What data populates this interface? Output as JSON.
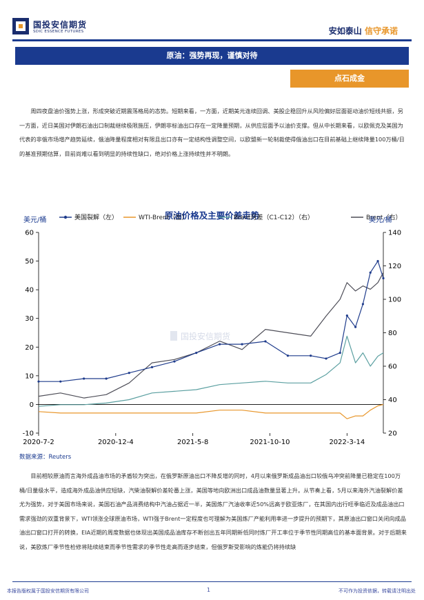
{
  "header": {
    "logo_cn": "国投安信期货",
    "logo_en": "SDIC ESSENCE FUTURES",
    "slogan_a": "安如泰山",
    "slogan_b": "信守承诺"
  },
  "report": {
    "title": "原油：强势再现，谨慎对待",
    "section_tag": "点石成金",
    "paragraph1": "周四夜盘油价强势上涨，形成突破近期震荡格局的态势。短期来看，一方面，近期美元连续回调、美股企稳回升从风险偏好层面驱动油价短线共振，另一方面，近日美国对伊朗石油出口制裁继续极限施压，伊朗非标油出口存在一定降量预期，从供应层面予以油价支撑。但从中长期来看，以欧佩克及美国为代表的非俄市场增产趋势延续，俄油降量程度相对有限且出口亦有一定结构性调整空间，以欧盟新一轮制裁使得俄油出口在目前基础上继续降量100万桶/日的基准预期估算，目前尚难以看到明显的持续性缺口，绝对价格上涨持续性并不明朗。",
    "paragraph2": "目前相较原油而言海外成品油市场的矛盾较为突出，在俄罗斯原油出口不降反增的同时，4月以来俄罗斯成品油出口较俄乌冲突前降量已稳定在100万桶/日量级水平，造成海外成品油供应短缺，汽柴油裂解价差轮番上涨，美国等地向欧洲出口成品油数量显著上升。从节奏上看，5月以来海外汽油裂解价差尤为强势，对于美国市场来说，美国石油产品消费结构中汽油占据近一半，美国炼厂汽油收率近50%远高于欧亚炼厂，在其国内出行旺季临近及成品油出口需求强劲的双重背景下，WTI领涨全球原油市场，WTI强于Brent一定程度也可理解为美国炼厂产能利用率进一步提升的预期下，其原油出口窗口关闭向成品油出口窗口打开的转换，EIA近期的周度数据也体现出美国成品油库存不断创出五年同期新低同时炼厂开工率位于季节性同期高位的基本面背景。对于后期来说，美欧炼厂季节性检修将陆续结束而季节性需求的季节性走高而逐步结束，但俄罗斯受影响的炼能仍将持续缺"
  },
  "chart_data": {
    "type": "line",
    "title": "原油价格及主要价差走势",
    "left_unit": "美元/桶",
    "right_unit": "美元/桶",
    "source": "数据来源：Reuters",
    "y_left": [
      -10,
      60
    ],
    "y_right": [
      20,
      140
    ],
    "y_left_ticks": [
      -10,
      0,
      10,
      20,
      30,
      40,
      50,
      60
    ],
    "y_right_ticks": [
      20,
      40,
      60,
      80,
      100,
      120,
      140
    ],
    "x_tick_labels": [
      "2020-7-2",
      "2020-12-4",
      "2021-5-8",
      "2021-10-10",
      "2022-3-14"
    ],
    "x_range": [
      "2020-7-2",
      "2022-5-26"
    ],
    "grid": false,
    "legend_position": "top",
    "watermark": "国投安信期货",
    "series": [
      {
        "name": "美国裂解（左）",
        "axis": "left",
        "color": "#1f3c8c",
        "marker": true,
        "x": [
          "2020-7-2",
          "2020-8-15",
          "2020-10-1",
          "2020-11-15",
          "2020-12-31",
          "2021-2-15",
          "2021-4-1",
          "2021-5-15",
          "2021-7-1",
          "2021-8-15",
          "2021-10-1",
          "2021-11-15",
          "2021-12-31",
          "2022-1-31",
          "2022-2-28",
          "2022-3-14",
          "2022-3-31",
          "2022-4-15",
          "2022-4-30",
          "2022-5-15",
          "2022-5-26"
        ],
        "values": [
          8,
          8,
          9,
          9,
          11,
          13,
          15,
          18,
          21,
          21,
          22,
          17,
          17,
          16,
          18,
          31,
          27,
          35,
          46,
          50,
          44
        ]
      },
      {
        "name": "WTI-Brent（左）",
        "axis": "left",
        "color": "#e8962a",
        "x": [
          "2020-7-2",
          "2020-8-15",
          "2020-10-1",
          "2020-11-15",
          "2020-12-31",
          "2021-2-15",
          "2021-4-1",
          "2021-5-15",
          "2021-7-1",
          "2021-8-15",
          "2021-10-1",
          "2021-11-15",
          "2021-12-31",
          "2022-1-31",
          "2022-2-28",
          "2022-3-14",
          "2022-3-31",
          "2022-4-15",
          "2022-4-30",
          "2022-5-15",
          "2022-5-26"
        ],
        "values": [
          -2.5,
          -3,
          -3,
          -3,
          -3,
          -3,
          -3,
          -3,
          -2,
          -2,
          -3,
          -3,
          -3,
          -3,
          -3,
          -5,
          -4,
          -4,
          -2,
          -0.5,
          0
        ]
      },
      {
        "name": "Brent月差（C1-C12）（右）",
        "axis": "right",
        "color": "#5a9fa0",
        "x": [
          "2020-7-2",
          "2020-8-15",
          "2020-10-1",
          "2020-11-15",
          "2020-12-31",
          "2021-2-15",
          "2021-4-1",
          "2021-5-15",
          "2021-7-1",
          "2021-8-15",
          "2021-10-1",
          "2021-11-15",
          "2021-12-31",
          "2022-1-31",
          "2022-2-28",
          "2022-3-14",
          "2022-3-31",
          "2022-4-15",
          "2022-4-30",
          "2022-5-15",
          "2022-5-26"
        ],
        "values": [
          36,
          37,
          37,
          38,
          40,
          44,
          45,
          46,
          49,
          50,
          51,
          50,
          50,
          55,
          62,
          78,
          62,
          68,
          60,
          66,
          68
        ]
      },
      {
        "name": "Brent（右）",
        "axis": "right",
        "color": "#4d4d57",
        "x": [
          "2020-7-2",
          "2020-8-15",
          "2020-10-1",
          "2020-11-15",
          "2020-12-31",
          "2021-2-15",
          "2021-4-1",
          "2021-5-15",
          "2021-7-1",
          "2021-8-15",
          "2021-10-1",
          "2021-11-15",
          "2021-12-31",
          "2022-1-31",
          "2022-2-28",
          "2022-3-14",
          "2022-3-31",
          "2022-4-15",
          "2022-4-30",
          "2022-5-15",
          "2022-5-26"
        ],
        "values": [
          42,
          44,
          41,
          43,
          50,
          62,
          64,
          68,
          75,
          70,
          82,
          80,
          78,
          90,
          100,
          110,
          105,
          108,
          106,
          110,
          116
        ]
      }
    ]
  },
  "footer": {
    "left": "本报告版权属于国投安信期货有限公司",
    "page": "1",
    "right": "不可作为投资依据，转载请注明出处"
  }
}
